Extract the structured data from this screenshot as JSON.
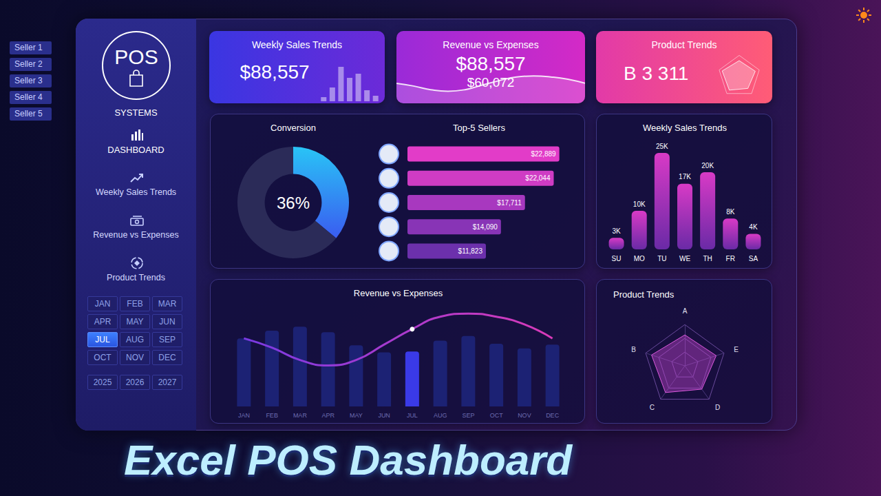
{
  "sellers": [
    "Seller 1",
    "Seller 2",
    "Seller 3",
    "Seller 4",
    "Seller 5"
  ],
  "sidebar": {
    "logo": "POS",
    "subtitle": "SYSTEMS",
    "nav": [
      "DASHBOARD",
      "Weekly Sales Trends",
      "Revenue vs Expenses",
      "Product Trends"
    ],
    "months": [
      "JAN",
      "FEB",
      "MAR",
      "APR",
      "MAY",
      "JUN",
      "JUL",
      "AUG",
      "SEP",
      "OCT",
      "NOV",
      "DEC"
    ],
    "selected_month": "JUL",
    "years": [
      "2025",
      "2026",
      "2027"
    ]
  },
  "kpis": [
    {
      "title": "Weekly Sales Trends",
      "values": [
        "$88,557"
      ]
    },
    {
      "title": "Revenue vs Expenses",
      "values": [
        "$88,557",
        "$60,072"
      ]
    },
    {
      "title": "Product Trends",
      "values": [
        "B 3 311"
      ]
    }
  ],
  "chart_data": [
    {
      "type": "pie",
      "title": "Conversion",
      "values": [
        36,
        64
      ],
      "value_labels": [
        "36%",
        null
      ],
      "colors": [
        "#29c4f6",
        "#2b2b58"
      ],
      "data_labels": true
    },
    {
      "type": "bar",
      "title": "Top-5 Sellers",
      "orientation": "horizontal",
      "categories": [
        null,
        null,
        null,
        null,
        null
      ],
      "values": [
        22889,
        22044,
        17711,
        14090,
        11823
      ],
      "value_labels": [
        "$22,889",
        "$22,044",
        "$17,711",
        "$14,090",
        "$11,823"
      ],
      "colors": [
        "#e23cc8",
        "#cf3cc4",
        "#a838bf",
        "#8834b6",
        "#6c30ac"
      ],
      "xlim": [
        0,
        25000
      ],
      "data_labels": true,
      "tick_labels": false,
      "grid": false
    },
    {
      "type": "bar",
      "title": "Weekly Sales Trends",
      "categories": [
        "SU",
        "MO",
        "TU",
        "WE",
        "TH",
        "FR",
        "SA"
      ],
      "values": [
        3000,
        10000,
        25000,
        17000,
        20000,
        8000,
        4000
      ],
      "value_labels": [
        "3K",
        "10K",
        "25K",
        "17K",
        "20K",
        "8K",
        "4K"
      ],
      "color": "#d83ac6",
      "ylim": [
        0,
        25000
      ],
      "data_labels": true,
      "tick_labels": "x",
      "grid": false
    },
    {
      "type": "combo",
      "title": "Revenue vs Expenses",
      "categories": [
        "JAN",
        "FEB",
        "MAR",
        "APR",
        "MAY",
        "JUN",
        "JUL",
        "AUG",
        "SEP",
        "OCT",
        "NOV",
        "DEC"
      ],
      "series": [
        {
          "type": "bar",
          "values": [
            88,
            98,
            103,
            96,
            79,
            70,
            71,
            85,
            91,
            81,
            75,
            80
          ],
          "colors": [
            "#1c2274",
            "#1c2274",
            "#1c2274",
            "#1c2274",
            "#1c2274",
            "#1c2274",
            "#3a3ae8",
            "#1c2274",
            "#1c2274",
            "#1c2274",
            "#1c2274",
            "#1c2274"
          ]
        },
        {
          "type": "line",
          "values": [
            88,
            76,
            60,
            53,
            60,
            80,
            100,
            116,
            120,
            116,
            106,
            88
          ],
          "color": "#d83ab8"
        }
      ],
      "ylim": [
        0,
        130
      ],
      "tick_labels": "x",
      "grid": false
    },
    {
      "type": "radar",
      "title": "Product Trends",
      "categories": [
        "A",
        "B",
        "C",
        "D",
        "E"
      ],
      "values": [
        75,
        85,
        80,
        70,
        80
      ],
      "color": "#e060e0",
      "ylim": [
        0,
        100
      ],
      "grid": true
    }
  ],
  "banner": "Excel POS Dashboard"
}
